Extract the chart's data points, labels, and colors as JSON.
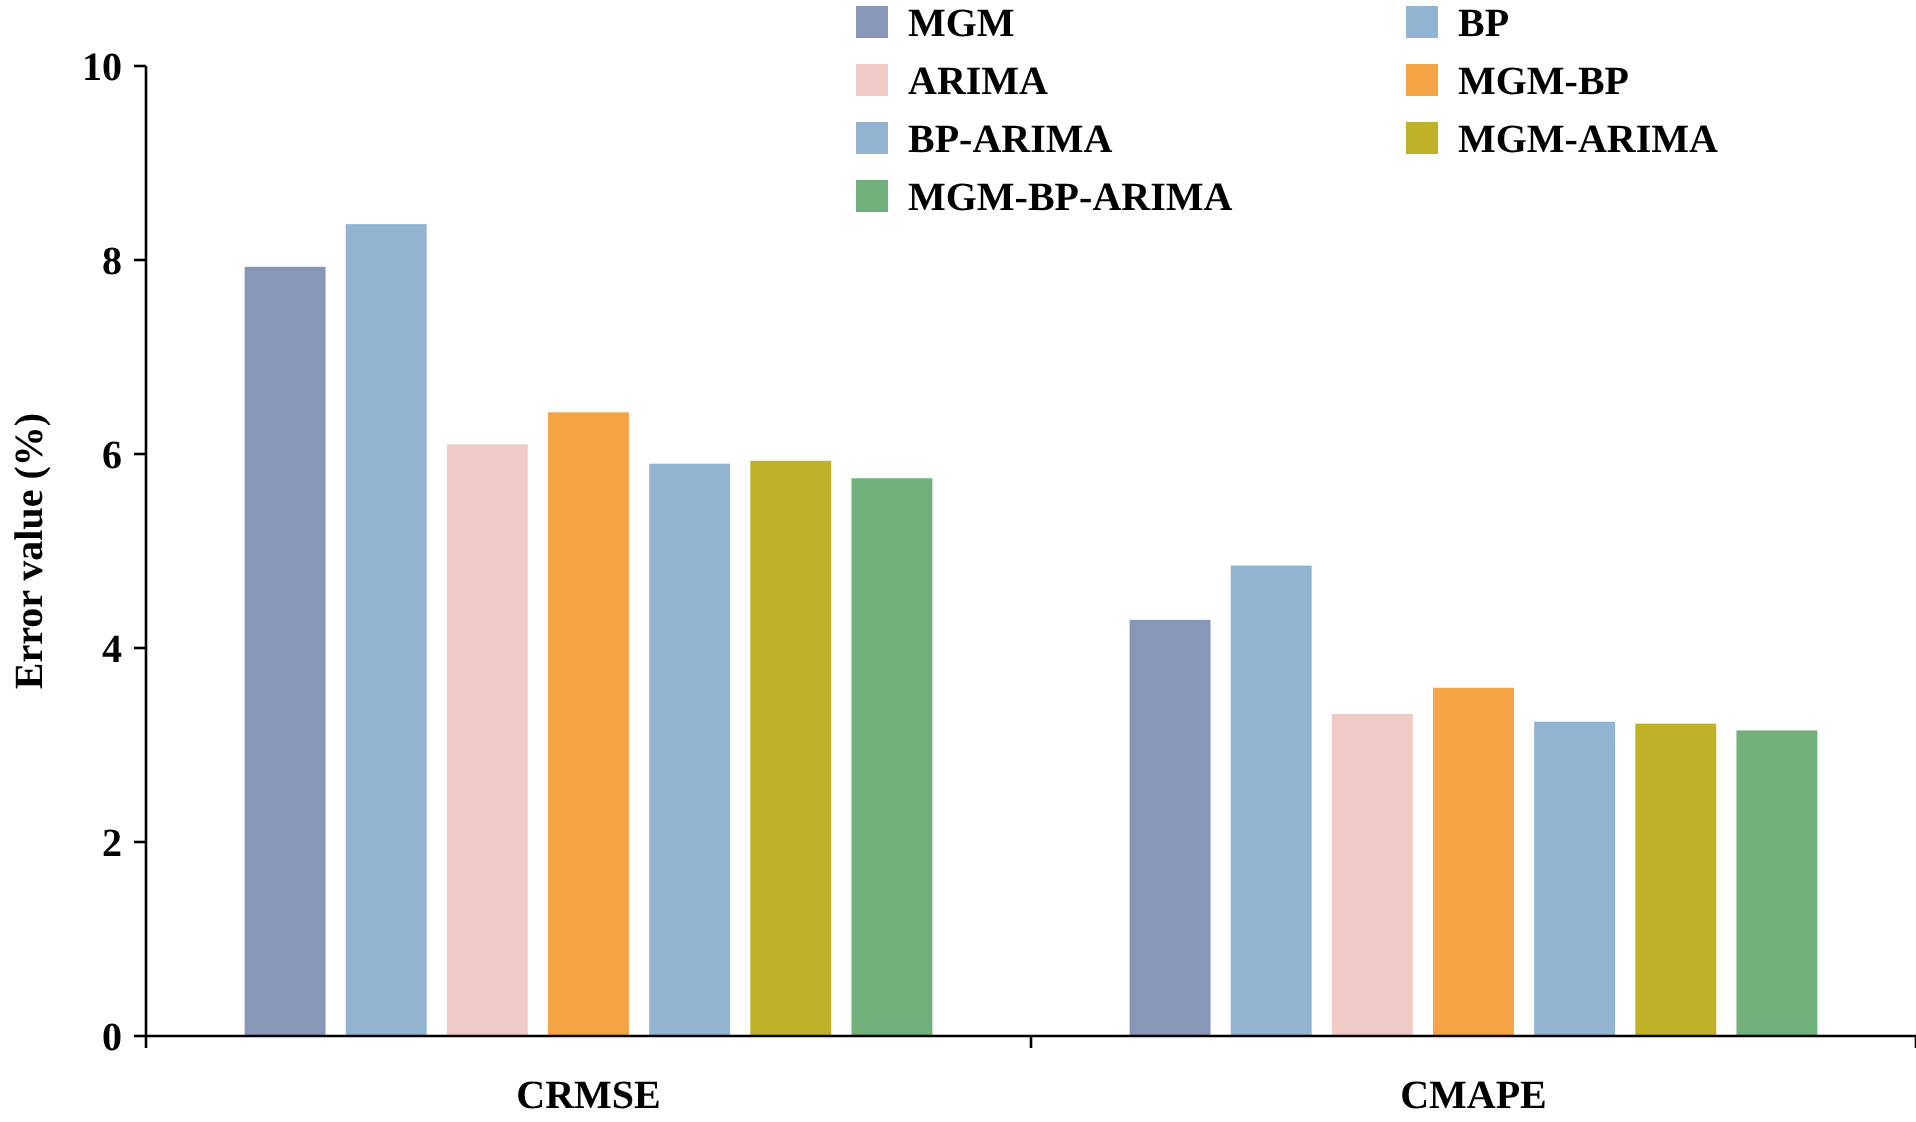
{
  "chart_data": {
    "type": "bar",
    "ylabel": "Error value (%)",
    "categories": [
      "CRMSE",
      "CMAPE"
    ],
    "series": [
      {
        "name": "MGM",
        "color": "#8896b8",
        "values": [
          7.93,
          4.29
        ]
      },
      {
        "name": "BP",
        "color": "#92b4d0",
        "values": [
          8.37,
          4.85
        ]
      },
      {
        "name": "ARIMA",
        "color": "#f0cac4",
        "values": [
          6.1,
          3.32
        ]
      },
      {
        "name": "MGM-BP",
        "color": "#f4a444",
        "values": [
          6.43,
          3.59
        ]
      },
      {
        "name": "BP-ARIMA",
        "color": "#92b4d0",
        "values": [
          5.9,
          3.24
        ]
      },
      {
        "name": "MGM-ARIMA",
        "color": "#bfb228",
        "values": [
          5.93,
          3.22
        ]
      },
      {
        "name": "MGM-BP-ARIMA",
        "color": "#70b07a",
        "values": [
          5.75,
          3.15
        ]
      }
    ],
    "ylim": [
      0,
      10
    ],
    "yticks": [
      0,
      2,
      4,
      6,
      8,
      10
    ],
    "grid": false,
    "legend": "top right"
  }
}
